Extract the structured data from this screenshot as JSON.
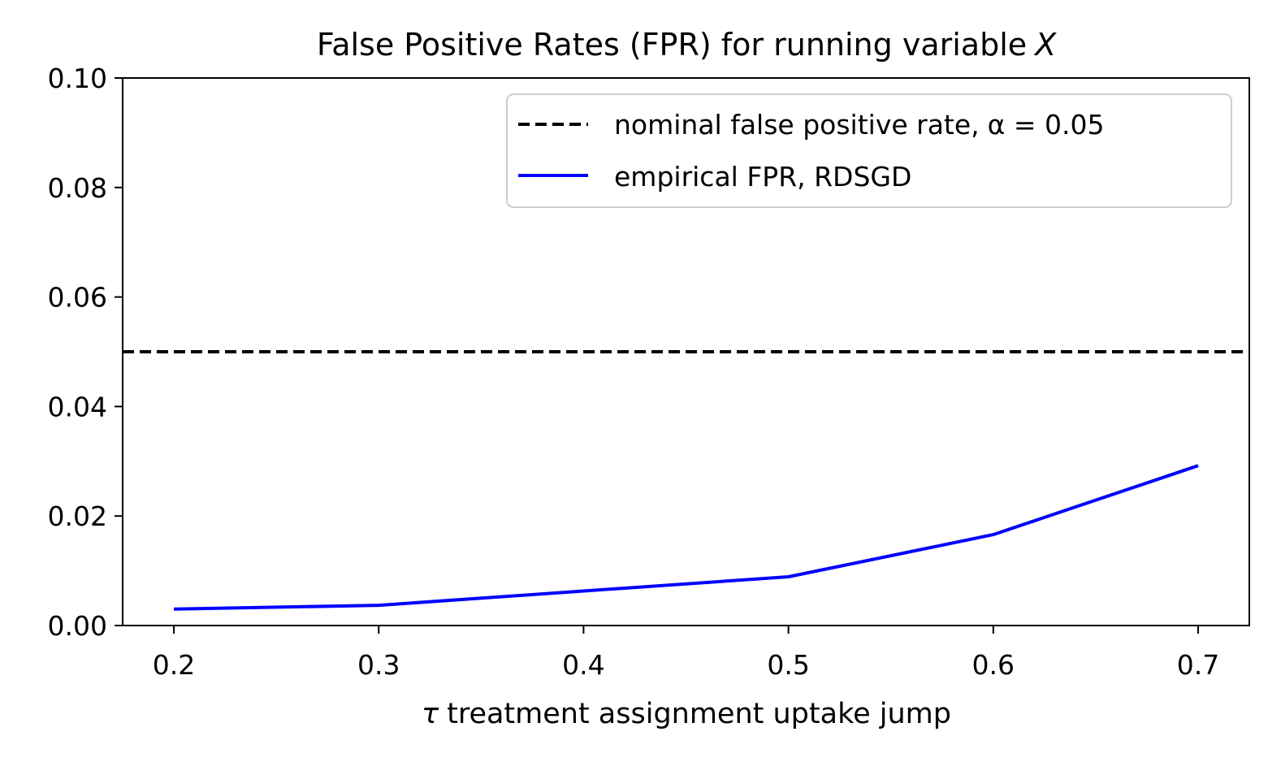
{
  "chart_data": {
    "type": "line",
    "title": "False Positive Rates (FPR) for running variable",
    "title_math": "X",
    "xlabel_symbol": "τ",
    "xlabel": "treatment assignment uptake jump",
    "ylabel": "",
    "xlim": [
      0.175,
      0.725
    ],
    "ylim": [
      0.0,
      0.1
    ],
    "x_ticks": [
      "0.2",
      "0.3",
      "0.4",
      "0.5",
      "0.6",
      "0.7"
    ],
    "y_ticks": [
      "0.00",
      "0.02",
      "0.04",
      "0.06",
      "0.08",
      "0.10"
    ],
    "grid": false,
    "legend_position": "top-right",
    "series": [
      {
        "name": "empirical FPR, RDSGD",
        "color": "#0000ff",
        "style": "solid",
        "x": [
          0.2,
          0.3,
          0.4,
          0.5,
          0.6,
          0.7
        ],
        "y": [
          0.003,
          0.0037,
          0.0063,
          0.0089,
          0.0166,
          0.0292
        ]
      }
    ],
    "reference_lines": [
      {
        "name": "nominal false positive rate,",
        "name_math": "α = 0.05",
        "color": "#000000",
        "style": "dashed",
        "y": 0.05
      }
    ]
  }
}
